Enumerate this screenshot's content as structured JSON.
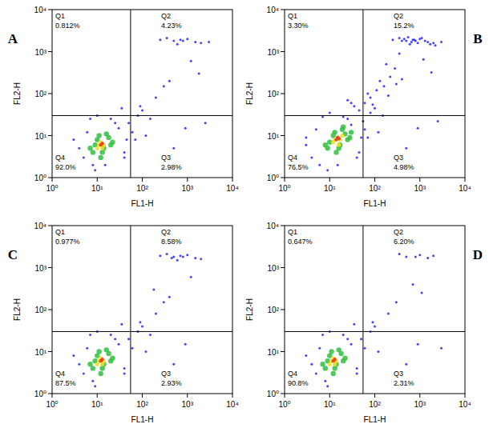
{
  "chart_data": [
    {
      "type": "scatter",
      "title": "A",
      "x_label": "FL1-H",
      "y_label": "FL2-H",
      "log": true,
      "xlim": [
        1,
        10000
      ],
      "ylim": [
        1,
        10000
      ],
      "xticks": [
        {
          "value": 1,
          "label": "10⁰"
        },
        {
          "value": 10,
          "label": "10¹"
        },
        {
          "value": 100,
          "label": "10²"
        },
        {
          "value": 1000,
          "label": "10³"
        },
        {
          "value": 10000,
          "label": "10⁴"
        }
      ],
      "yticks": [
        {
          "value": 1,
          "label": "10⁰"
        },
        {
          "value": 10,
          "label": "10¹"
        },
        {
          "value": 100,
          "label": "10²"
        },
        {
          "value": 1000,
          "label": "10³"
        },
        {
          "value": 10000,
          "label": "10⁴"
        }
      ],
      "quadrant_x": 55,
      "quadrant_y": 30,
      "quadrants": [
        {
          "name": "Q1",
          "value": 0.812,
          "label": "0.812%"
        },
        {
          "name": "Q2",
          "value": 4.23,
          "label": "4.23%"
        },
        {
          "name": "Q3",
          "value": 2.98,
          "label": "2.98%"
        },
        {
          "name": "Q4",
          "value": 92.0,
          "label": "92.0%"
        }
      ],
      "series": [
        {
          "color": "#3030ff",
          "x": [
            4,
            6,
            5,
            8,
            30,
            40,
            45,
            25,
            3,
            7,
            9,
            50,
            60,
            80,
            100,
            150,
            200,
            300,
            400,
            500,
            700,
            1000,
            1500,
            2000,
            3000,
            250,
            350,
            600,
            800,
            1200,
            1800,
            120,
            90,
            70,
            500,
            900,
            2500,
            40,
            20,
            10,
            15,
            35
          ],
          "values": [
            5,
            12,
            3,
            2,
            15,
            4,
            8,
            20,
            8,
            25,
            1.5,
            20,
            12,
            30,
            40,
            25,
            80,
            150,
            200,
            1800,
            1900,
            2000,
            1700,
            1600,
            1700,
            1900,
            2100,
            1500,
            1800,
            600,
            300,
            10,
            50,
            8,
            5,
            15,
            20,
            3,
            25,
            30,
            2,
            45
          ]
        },
        {
          "color": "#30c040",
          "x": [
            8,
            10,
            14,
            18,
            20,
            12,
            9,
            16,
            22,
            11,
            7,
            13
          ],
          "values": [
            4,
            8,
            5,
            9,
            6,
            3,
            6,
            11,
            7,
            10,
            5,
            4
          ]
        },
        {
          "color": "#f0e020",
          "x": [
            10,
            12,
            14,
            11,
            13
          ],
          "values": [
            5,
            7,
            6,
            6,
            5
          ]
        },
        {
          "color": "#e83020",
          "x": [
            12,
            13
          ],
          "values": [
            6,
            6.5
          ]
        }
      ]
    },
    {
      "type": "scatter",
      "title": "B",
      "x_label": "FL1-H",
      "y_label": "FL2-H",
      "log": true,
      "xlim": [
        1,
        10000
      ],
      "ylim": [
        1,
        10000
      ],
      "xticks": [
        {
          "value": 1,
          "label": "10⁰"
        },
        {
          "value": 10,
          "label": "10¹"
        },
        {
          "value": 100,
          "label": "10²"
        },
        {
          "value": 1000,
          "label": "10³"
        },
        {
          "value": 10000,
          "label": "10⁴"
        }
      ],
      "yticks": [
        {
          "value": 1,
          "label": "10⁰"
        },
        {
          "value": 10,
          "label": "10¹"
        },
        {
          "value": 100,
          "label": "10²"
        },
        {
          "value": 1000,
          "label": "10³"
        },
        {
          "value": 10000,
          "label": "10⁴"
        }
      ],
      "quadrant_x": 55,
      "quadrant_y": 30,
      "quadrants": [
        {
          "name": "Q1",
          "value": 3.3,
          "label": "3.30%"
        },
        {
          "name": "Q2",
          "value": 15.2,
          "label": "15.2%"
        },
        {
          "name": "Q3",
          "value": 4.98,
          "label": "4.98%"
        },
        {
          "name": "Q4",
          "value": 76.5,
          "label": "76.5%"
        }
      ],
      "series": [
        {
          "color": "#3030ff",
          "x": [
            3,
            5,
            4,
            6,
            30,
            45,
            50,
            25,
            3,
            7,
            9,
            55,
            60,
            80,
            100,
            150,
            200,
            300,
            400,
            500,
            700,
            1000,
            1500,
            2000,
            3000,
            250,
            350,
            600,
            800,
            1200,
            1800,
            120,
            90,
            70,
            500,
            900,
            2500,
            40,
            20,
            10,
            15,
            35,
            60,
            80,
            110,
            160,
            220,
            280,
            400,
            450,
            550,
            650,
            750,
            900,
            1100,
            1300,
            1700,
            2200,
            350,
            180,
            130,
            70,
            45,
            30,
            25
          ],
          "values": [
            6,
            14,
            3,
            2,
            18,
            4,
            9,
            25,
            9,
            28,
            1.5,
            22,
            14,
            35,
            45,
            30,
            90,
            170,
            220,
            1800,
            1900,
            2000,
            1700,
            1600,
            1700,
            1900,
            2100,
            1500,
            1800,
            650,
            320,
            12,
            55,
            9,
            5,
            15,
            22,
            3,
            28,
            35,
            2,
            50,
            60,
            80,
            120,
            150,
            250,
            400,
            1800,
            2000,
            2200,
            1700,
            1900,
            1600,
            2100,
            1800,
            1500,
            1400,
            900,
            500,
            200,
            100,
            40,
            60,
            70
          ]
        },
        {
          "color": "#30c040",
          "x": [
            9,
            12,
            17,
            22,
            25,
            14,
            10,
            19,
            28,
            13,
            8,
            16,
            20,
            30
          ],
          "values": [
            5,
            10,
            6,
            11,
            8,
            4,
            7,
            14,
            9,
            12,
            6,
            5,
            16,
            12
          ]
        },
        {
          "color": "#f0e020",
          "x": [
            12,
            15,
            17,
            13,
            16,
            19
          ],
          "values": [
            7,
            9,
            8,
            8,
            6,
            10
          ]
        },
        {
          "color": "#e83020",
          "x": [
            14,
            16,
            15
          ],
          "values": [
            8,
            8.5,
            9
          ]
        }
      ]
    },
    {
      "type": "scatter",
      "title": "C",
      "x_label": "FL1-H",
      "y_label": "FL2-H",
      "log": true,
      "xlim": [
        1,
        10000
      ],
      "ylim": [
        1,
        10000
      ],
      "xticks": [
        {
          "value": 1,
          "label": "10⁰"
        },
        {
          "value": 10,
          "label": "10¹"
        },
        {
          "value": 100,
          "label": "10²"
        },
        {
          "value": 1000,
          "label": "10³"
        },
        {
          "value": 10000,
          "label": "10⁴"
        }
      ],
      "yticks": [
        {
          "value": 1,
          "label": "10⁰"
        },
        {
          "value": 10,
          "label": "10¹"
        },
        {
          "value": 100,
          "label": "10²"
        },
        {
          "value": 1000,
          "label": "10³"
        },
        {
          "value": 10000,
          "label": "10⁴"
        }
      ],
      "quadrant_x": 55,
      "quadrant_y": 30,
      "quadrants": [
        {
          "name": "Q1",
          "value": 0.977,
          "label": "0.977%"
        },
        {
          "name": "Q2",
          "value": 8.58,
          "label": "8.58%"
        },
        {
          "name": "Q3",
          "value": 2.93,
          "label": "2.93%"
        },
        {
          "name": "Q4",
          "value": 87.5,
          "label": "87.5%"
        }
      ],
      "series": [
        {
          "color": "#3030ff",
          "x": [
            4,
            6,
            5,
            8,
            30,
            40,
            25,
            3,
            7,
            9,
            50,
            60,
            80,
            100,
            150,
            200,
            300,
            400,
            500,
            700,
            1000,
            1500,
            2000,
            250,
            350,
            600,
            800,
            1200,
            120,
            90,
            500,
            900,
            40,
            20,
            10,
            35,
            180,
            450
          ],
          "values": [
            5,
            12,
            3,
            2,
            15,
            4,
            20,
            8,
            25,
            1.5,
            20,
            12,
            30,
            40,
            25,
            80,
            150,
            200,
            1800,
            1900,
            2000,
            1700,
            1600,
            1900,
            2100,
            1500,
            1800,
            600,
            10,
            50,
            5,
            15,
            3,
            25,
            30,
            45,
            300,
            1700
          ]
        },
        {
          "color": "#30c040",
          "x": [
            8,
            10,
            14,
            18,
            20,
            12,
            9,
            16,
            22,
            11,
            7,
            13
          ],
          "values": [
            4,
            8,
            5,
            9,
            6,
            3,
            6,
            11,
            7,
            10,
            5,
            4
          ]
        },
        {
          "color": "#f0e020",
          "x": [
            10,
            12,
            14,
            11,
            13
          ],
          "values": [
            5,
            7,
            6,
            6,
            5
          ]
        },
        {
          "color": "#e83020",
          "x": [
            12,
            13
          ],
          "values": [
            6,
            6.5
          ]
        }
      ]
    },
    {
      "type": "scatter",
      "title": "D",
      "x_label": "FL1-H",
      "y_label": "FL2-H",
      "log": true,
      "xlim": [
        1,
        10000
      ],
      "ylim": [
        1,
        10000
      ],
      "xticks": [
        {
          "value": 1,
          "label": "10⁰"
        },
        {
          "value": 10,
          "label": "10¹"
        },
        {
          "value": 100,
          "label": "10²"
        },
        {
          "value": 1000,
          "label": "10³"
        },
        {
          "value": 10000,
          "label": "10⁴"
        }
      ],
      "yticks": [
        {
          "value": 1,
          "label": "10⁰"
        },
        {
          "value": 10,
          "label": "10¹"
        },
        {
          "value": 100,
          "label": "10²"
        },
        {
          "value": 1000,
          "label": "10³"
        },
        {
          "value": 10000,
          "label": "10⁴"
        }
      ],
      "quadrant_x": 55,
      "quadrant_y": 30,
      "quadrants": [
        {
          "name": "Q1",
          "value": 0.647,
          "label": "0.647%"
        },
        {
          "name": "Q2",
          "value": 6.2,
          "label": "6.20%"
        },
        {
          "name": "Q3",
          "value": 2.31,
          "label": "2.31%"
        },
        {
          "name": "Q4",
          "value": 90.8,
          "label": "90.8%"
        }
      ],
      "series": [
        {
          "color": "#3030ff",
          "x": [
            4,
            6,
            5,
            8,
            30,
            40,
            25,
            3,
            7,
            9,
            50,
            60,
            80,
            100,
            200,
            300,
            500,
            1000,
            1500,
            2000,
            350,
            800,
            120,
            90,
            500,
            900,
            40,
            20,
            10,
            35,
            700,
            1100,
            3000
          ],
          "values": [
            5,
            12,
            3,
            2,
            15,
            4,
            20,
            8,
            25,
            1.5,
            20,
            12,
            30,
            40,
            80,
            150,
            1800,
            2000,
            1700,
            1900,
            2100,
            1800,
            10,
            50,
            5,
            15,
            3,
            25,
            30,
            45,
            400,
            250,
            12
          ]
        },
        {
          "color": "#30c040",
          "x": [
            8,
            10,
            14,
            18,
            20,
            12,
            9,
            16,
            22,
            11,
            7,
            13
          ],
          "values": [
            4,
            8,
            5,
            9,
            6,
            3,
            6,
            11,
            7,
            10,
            5,
            4
          ]
        },
        {
          "color": "#f0e020",
          "x": [
            10,
            12,
            14,
            11,
            13
          ],
          "values": [
            5,
            7,
            6,
            6,
            5
          ]
        },
        {
          "color": "#e83020",
          "x": [
            12,
            13
          ],
          "values": [
            6,
            6.5
          ]
        }
      ]
    }
  ]
}
